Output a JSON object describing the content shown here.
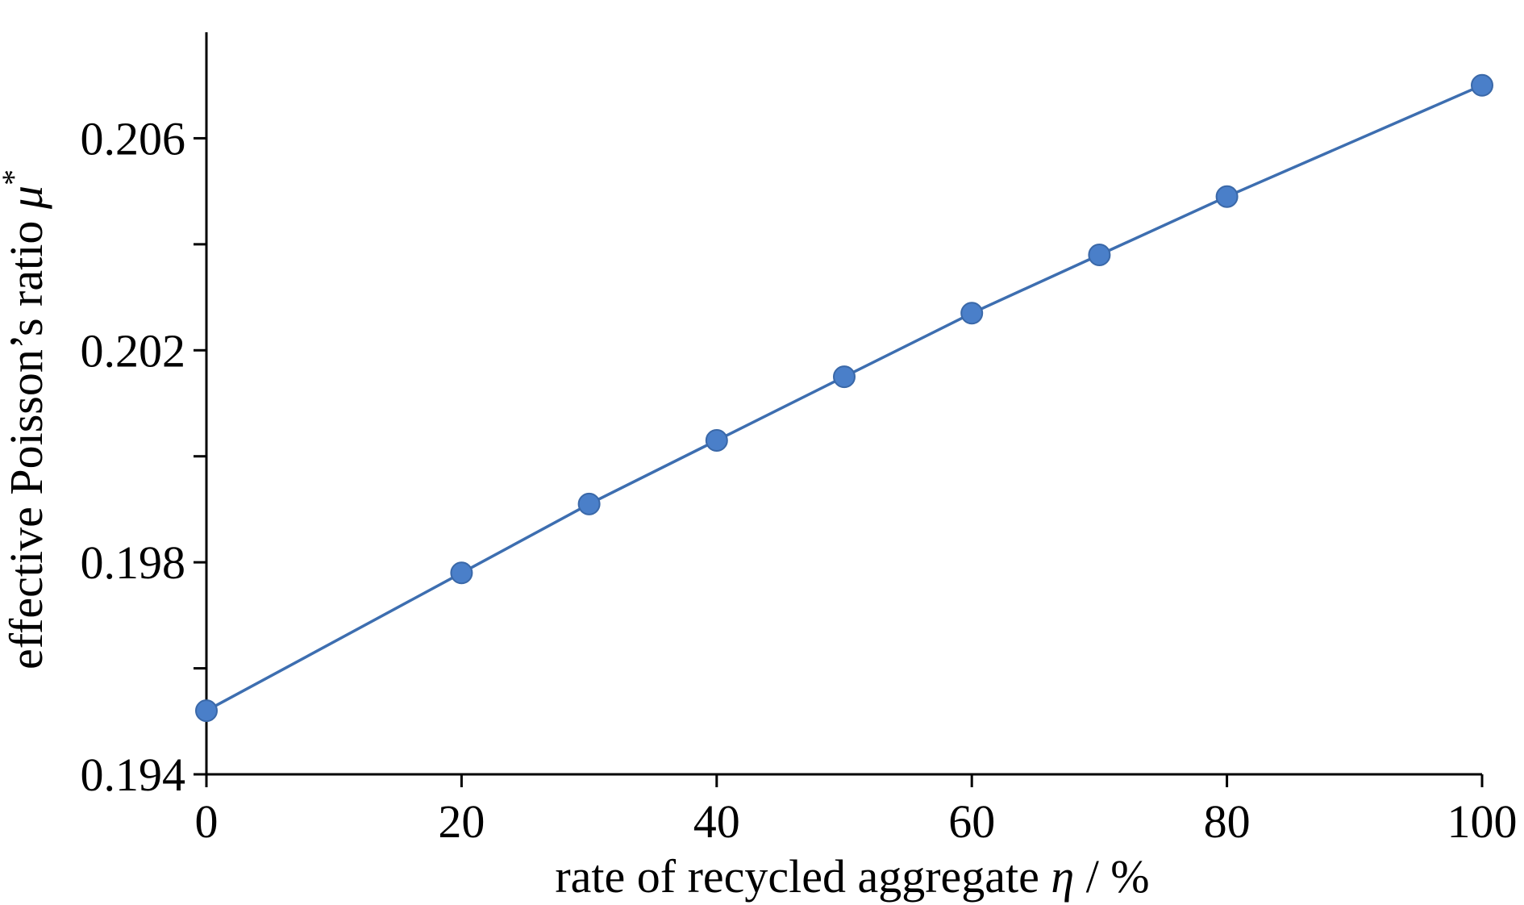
{
  "chart_data": {
    "type": "line",
    "x": [
      0,
      20,
      30,
      40,
      50,
      60,
      70,
      80,
      100
    ],
    "series": [
      {
        "values": [
          0.1952,
          0.1978,
          0.1991,
          0.2003,
          0.2015,
          0.2027,
          0.2038,
          0.2049,
          0.207
        ]
      }
    ],
    "xlabel": {
      "text": "rate of recycled aggregate ",
      "symbol": "η",
      "unit": " / %"
    },
    "ylabel": {
      "text": "effective Poisson’s ratio ",
      "symbol": "μ",
      "sup": "*"
    },
    "xlim": [
      0,
      100
    ],
    "ylim": [
      0.194,
      0.208
    ],
    "xticks": [
      0,
      20,
      40,
      60,
      80,
      100
    ],
    "xtick_labels": [
      "0",
      "20",
      "40",
      "60",
      "80",
      "100"
    ],
    "yticks": [
      0.194,
      0.198,
      0.202,
      0.206
    ],
    "ytick_labels": [
      "0.194",
      "0.198",
      "0.202",
      "0.206"
    ],
    "yminor_ticks": [
      0.196,
      0.2,
      0.204
    ],
    "grid": false,
    "colors": {
      "line": "#3d6eb0",
      "marker": "#4a7fc9",
      "marker_edge": "#3a68a8",
      "axis": "#000000"
    }
  }
}
